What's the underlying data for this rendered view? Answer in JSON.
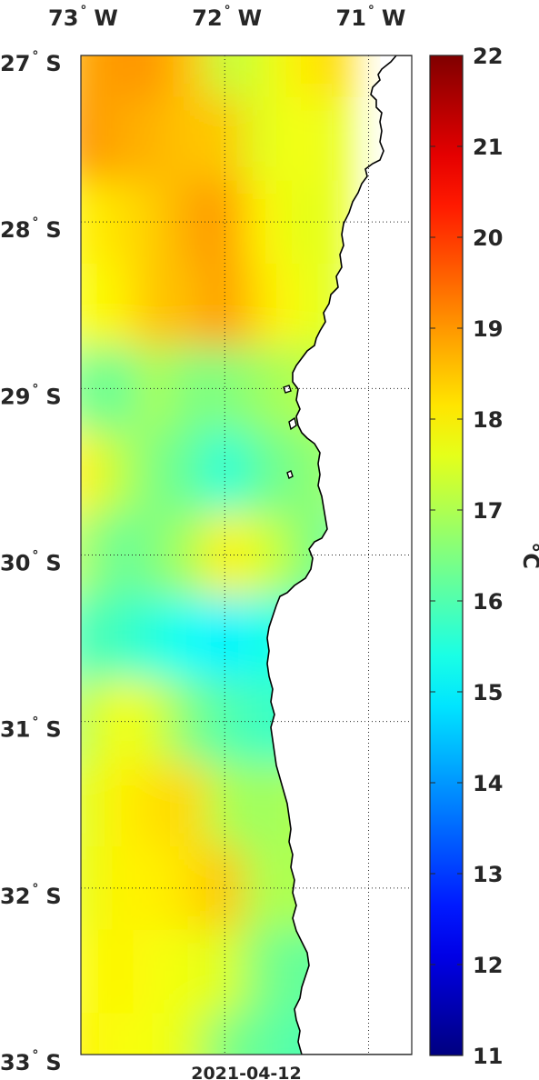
{
  "chart_data": {
    "type": "heatmap",
    "title": "",
    "date": "2021-04-12",
    "x_axis": {
      "ticks": [
        {
          "deg": "73",
          "dir": "W",
          "value": -73
        },
        {
          "deg": "72",
          "dir": "W",
          "value": -72
        },
        {
          "deg": "71",
          "dir": "W",
          "value": -71
        }
      ],
      "range": [
        -73.0,
        -70.7
      ]
    },
    "y_axis": {
      "ticks": [
        {
          "deg": "27",
          "dir": "S",
          "value": -27
        },
        {
          "deg": "28",
          "dir": "S",
          "value": -28
        },
        {
          "deg": "29",
          "dir": "S",
          "value": -29
        },
        {
          "deg": "30",
          "dir": "S",
          "value": -30
        },
        {
          "deg": "31",
          "dir": "S",
          "value": -31
        },
        {
          "deg": "32",
          "dir": "S",
          "value": -32
        },
        {
          "deg": "33",
          "dir": "S",
          "value": -33
        }
      ],
      "range": [
        -33.0,
        -27.0
      ]
    },
    "grid": true,
    "colorbar": {
      "label": "°C",
      "min": 11,
      "max": 22,
      "ticks": [
        11,
        12,
        13,
        14,
        15,
        16,
        17,
        18,
        19,
        20,
        21,
        22
      ],
      "colormap": "jet"
    },
    "temperature_field": {
      "lat": [
        -27.0,
        -27.5,
        -28.0,
        -28.5,
        -29.0,
        -29.5,
        -30.0,
        -30.5,
        -31.0,
        -31.5,
        -32.0,
        -32.5,
        -33.0
      ],
      "lon": [
        -73.0,
        -72.75,
        -72.5,
        -72.25,
        -72.0,
        -71.75,
        -71.5,
        -71.25
      ],
      "values": [
        [
          18.8,
          19.0,
          19.0,
          18.5,
          17.2,
          17.5,
          18.0,
          18.3
        ],
        [
          19.0,
          18.8,
          18.7,
          18.5,
          18.5,
          17.5,
          17.8,
          17.6
        ],
        [
          18.0,
          18.2,
          18.4,
          18.8,
          19.0,
          18.0,
          17.6,
          17.6
        ],
        [
          17.8,
          18.0,
          18.5,
          18.6,
          19.0,
          18.2,
          17.8,
          17.5
        ],
        [
          16.5,
          16.2,
          17.0,
          16.5,
          16.5,
          16.8,
          17.0,
          17.2
        ],
        [
          18.0,
          17.2,
          16.5,
          16.2,
          15.5,
          16.2,
          16.5,
          16.8
        ],
        [
          17.0,
          16.2,
          16.5,
          17.0,
          18.0,
          17.5,
          16.8,
          16.2
        ],
        [
          16.0,
          15.8,
          15.5,
          15.2,
          15.0,
          15.3,
          15.5,
          15.6
        ],
        [
          17.0,
          17.8,
          17.5,
          16.5,
          16.0,
          15.8,
          15.7,
          15.7
        ],
        [
          17.5,
          18.0,
          18.2,
          18.3,
          17.0,
          16.8,
          17.0,
          17.0
        ],
        [
          17.6,
          18.0,
          18.0,
          18.2,
          18.5,
          17.0,
          17.0,
          17.0
        ],
        [
          17.8,
          18.0,
          17.8,
          17.7,
          17.5,
          16.5,
          16.2,
          16.2
        ],
        [
          18.0,
          17.8,
          17.8,
          17.5,
          16.5,
          16.2,
          16.0,
          16.0
        ]
      ]
    },
    "land_color": "#ffffff",
    "coastline_color": "#000000"
  }
}
